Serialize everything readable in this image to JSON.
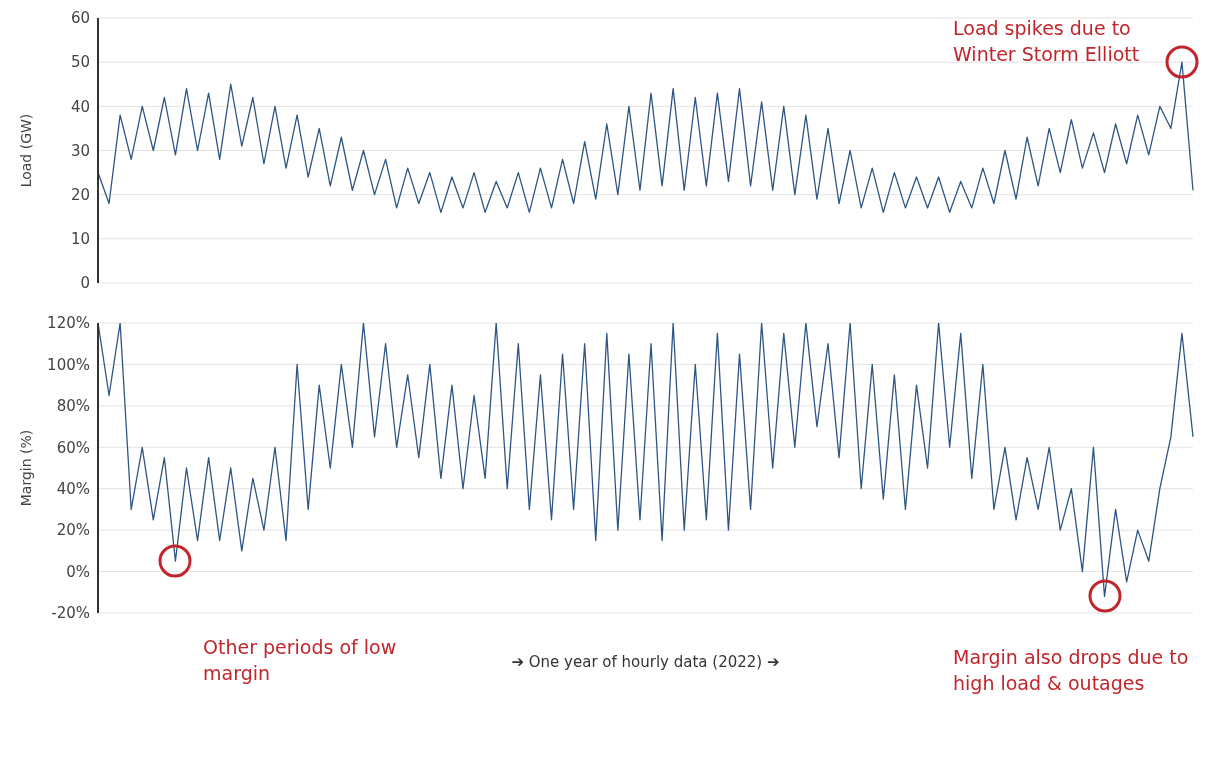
{
  "chart_data": [
    {
      "type": "line",
      "ylabel": "Load (GW)",
      "categories": [
        null,
        null,
        null,
        null,
        null,
        null,
        null,
        null,
        null,
        null,
        null,
        null,
        null,
        null,
        null,
        null,
        null,
        null,
        null,
        null,
        null,
        null,
        null,
        null,
        null,
        null,
        null,
        null,
        null,
        null,
        null,
        null,
        null,
        null,
        null,
        null,
        null,
        null,
        null,
        null,
        null,
        null,
        null,
        null,
        null,
        null,
        null,
        null,
        null,
        null,
        null,
        null,
        null,
        null,
        null,
        null,
        null,
        null,
        null,
        null,
        null,
        null,
        null,
        null,
        null,
        null,
        null,
        null,
        null,
        null,
        null,
        null,
        null,
        null,
        null,
        null,
        null,
        null,
        null,
        null,
        null,
        null,
        null,
        null,
        null,
        null,
        null,
        null,
        null,
        null,
        null,
        null,
        null,
        null,
        null,
        null,
        null,
        null,
        null,
        null
      ],
      "series": [
        {
          "color": "#2f5584",
          "values": [
            25,
            18,
            38,
            28,
            40,
            30,
            42,
            29,
            44,
            30,
            43,
            28,
            45,
            31,
            42,
            27,
            40,
            26,
            38,
            24,
            35,
            22,
            33,
            21,
            30,
            20,
            28,
            17,
            26,
            18,
            25,
            16,
            24,
            17,
            25,
            16,
            23,
            17,
            25,
            16,
            26,
            17,
            28,
            18,
            32,
            19,
            36,
            20,
            40,
            21,
            43,
            22,
            44,
            21,
            42,
            22,
            43,
            23,
            44,
            22,
            41,
            21,
            40,
            20,
            38,
            19,
            35,
            18,
            30,
            17,
            26,
            16,
            25,
            17,
            24,
            17,
            24,
            16,
            23,
            17,
            26,
            18,
            30,
            19,
            33,
            22,
            35,
            25,
            37,
            26,
            34,
            25,
            36,
            27,
            38,
            29,
            40,
            35,
            50,
            21
          ]
        }
      ],
      "ylim": [
        0,
        60
      ],
      "yticks": [
        0,
        10,
        20,
        30,
        40,
        50,
        60
      ],
      "grid": "y",
      "tick_labels": "y",
      "annotations": [
        "Load spikes due to Winter Storm Elliott"
      ]
    },
    {
      "type": "line",
      "ylabel": "Margin (%)",
      "xlabel": "➔ One year of hourly data (2022) ➔",
      "categories": [
        null,
        null,
        null,
        null,
        null,
        null,
        null,
        null,
        null,
        null,
        null,
        null,
        null,
        null,
        null,
        null,
        null,
        null,
        null,
        null,
        null,
        null,
        null,
        null,
        null,
        null,
        null,
        null,
        null,
        null,
        null,
        null,
        null,
        null,
        null,
        null,
        null,
        null,
        null,
        null,
        null,
        null,
        null,
        null,
        null,
        null,
        null,
        null,
        null,
        null,
        null,
        null,
        null,
        null,
        null,
        null,
        null,
        null,
        null,
        null,
        null,
        null,
        null,
        null,
        null,
        null,
        null,
        null,
        null,
        null,
        null,
        null,
        null,
        null,
        null,
        null,
        null,
        null,
        null,
        null,
        null,
        null,
        null,
        null,
        null,
        null,
        null,
        null,
        null,
        null,
        null,
        null,
        null,
        null,
        null,
        null,
        null,
        null,
        null,
        null
      ],
      "series": [
        {
          "color": "#2f5584",
          "values": [
            120,
            85,
            120,
            30,
            60,
            25,
            55,
            5,
            50,
            15,
            55,
            15,
            50,
            10,
            45,
            20,
            60,
            15,
            100,
            30,
            90,
            50,
            100,
            60,
            120,
            65,
            110,
            60,
            95,
            55,
            100,
            45,
            90,
            40,
            85,
            45,
            120,
            40,
            110,
            30,
            95,
            25,
            105,
            30,
            110,
            15,
            115,
            20,
            105,
            25,
            110,
            15,
            120,
            20,
            100,
            25,
            115,
            20,
            105,
            30,
            120,
            50,
            115,
            60,
            120,
            70,
            110,
            55,
            120,
            40,
            100,
            35,
            95,
            30,
            90,
            50,
            120,
            60,
            115,
            45,
            100,
            30,
            60,
            25,
            55,
            30,
            60,
            20,
            40,
            0,
            60,
            -12,
            30,
            -5,
            20,
            5,
            40,
            65,
            115,
            65
          ]
        }
      ],
      "ylim": [
        -20,
        120
      ],
      "yticks": [
        {
          "value": -20,
          "label": "-20%"
        },
        {
          "value": 0,
          "label": "0%"
        },
        {
          "value": 20,
          "label": "20%"
        },
        {
          "value": 40,
          "label": "40%"
        },
        {
          "value": 60,
          "label": "60%"
        },
        {
          "value": 80,
          "label": "80%"
        },
        {
          "value": 100,
          "label": "100%"
        },
        {
          "value": 120,
          "label": "120%"
        }
      ],
      "grid": "y",
      "tick_labels": "y",
      "annotations": [
        "Other periods of low margin",
        "Margin also drops due to high load & outages"
      ]
    }
  ]
}
